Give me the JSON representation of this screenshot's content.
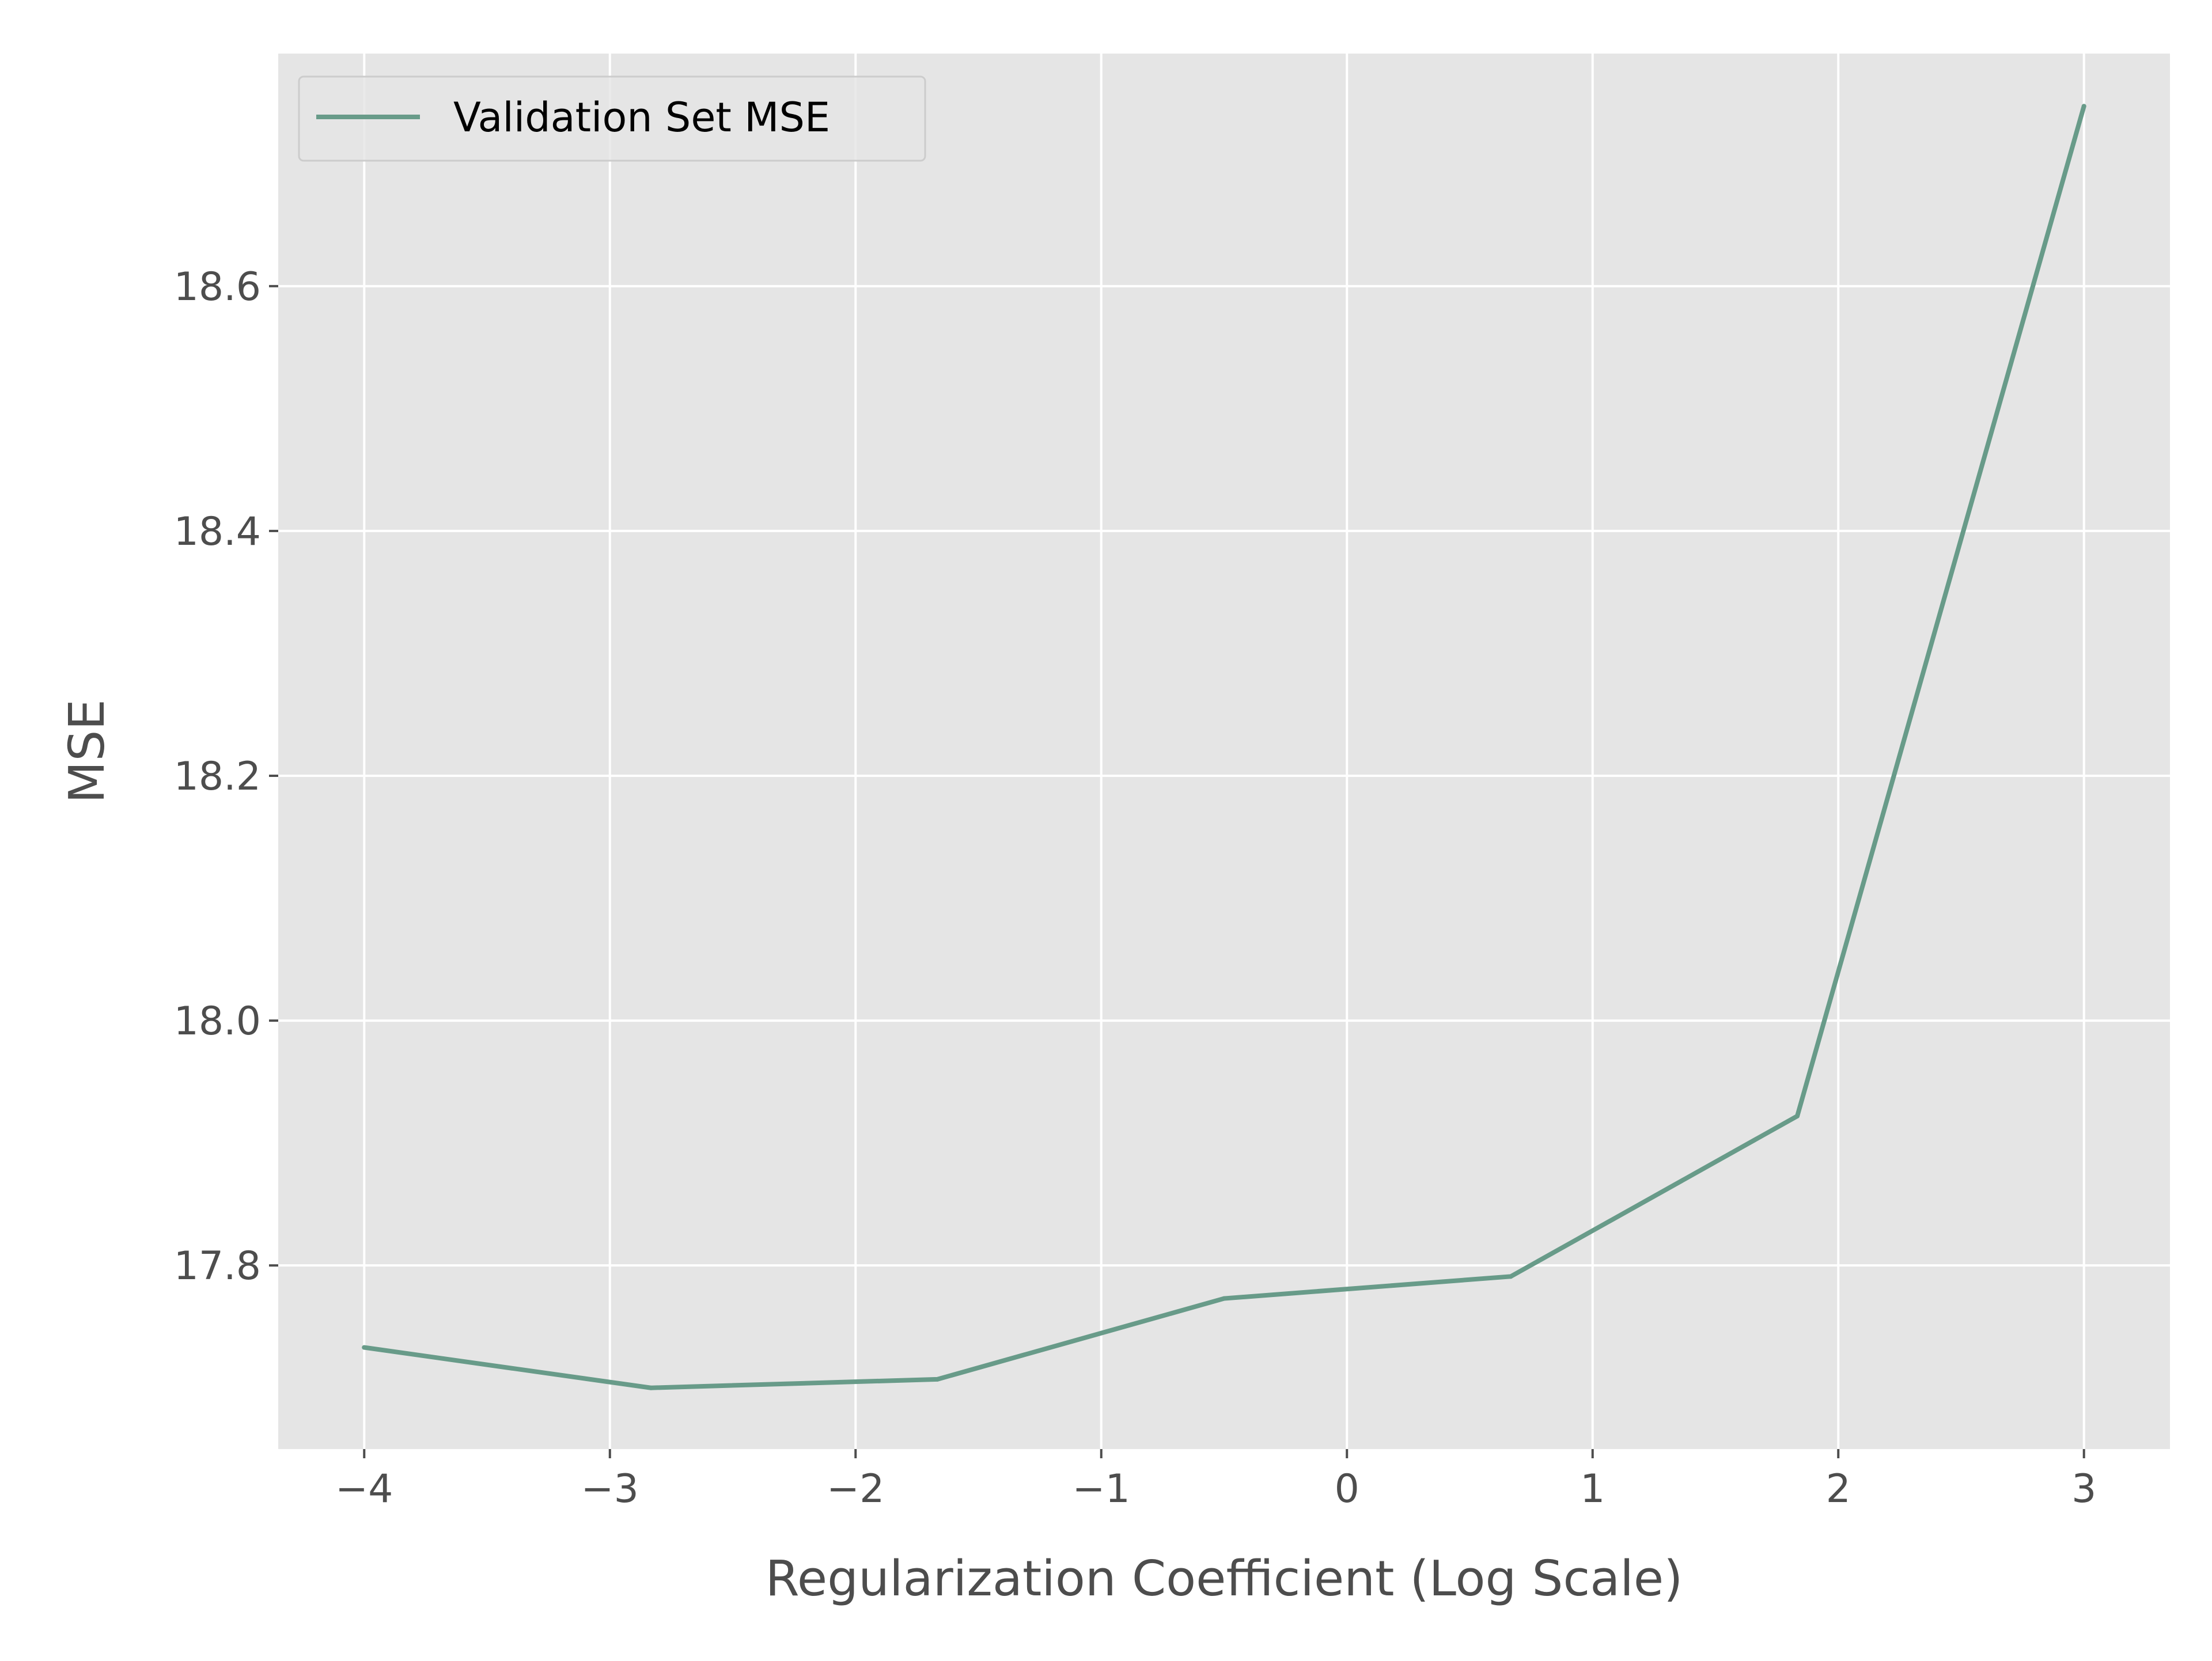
{
  "chart_data": {
    "type": "line",
    "title": "",
    "xlabel": "Regularization Coefficient (Log Scale)",
    "ylabel": "MSE",
    "xlim": [
      -4.35,
      3.35
    ],
    "ylim": [
      17.65,
      18.79
    ],
    "xticks": [
      {
        "value": -4,
        "label": "−4"
      },
      {
        "value": -3,
        "label": "−3"
      },
      {
        "value": -2,
        "label": "−2"
      },
      {
        "value": -1,
        "label": "−1"
      },
      {
        "value": 0,
        "label": "0"
      },
      {
        "value": 1,
        "label": "1"
      },
      {
        "value": 2,
        "label": "2"
      },
      {
        "value": 3,
        "label": "3"
      }
    ],
    "yticks": [
      {
        "value": 17.8,
        "label": "17.8"
      },
      {
        "value": 18.0,
        "label": "18.0"
      },
      {
        "value": 18.2,
        "label": "18.2"
      },
      {
        "value": 18.4,
        "label": "18.4"
      },
      {
        "value": 18.6,
        "label": "18.6"
      }
    ],
    "grid": true,
    "legend_position": "upper-left",
    "series": [
      {
        "name": "Validation Set MSE",
        "color": "#689b89",
        "x": [
          -4.0,
          -2.833,
          -1.667,
          -0.5,
          0.667,
          1.833,
          3.0
        ],
        "y": [
          17.733,
          17.7,
          17.707,
          17.773,
          17.791,
          17.922,
          18.747
        ]
      }
    ],
    "style": {
      "plot_background": "#e5e5e5",
      "grid_color": "#ffffff",
      "tick_color": "#4d4d4d"
    }
  }
}
